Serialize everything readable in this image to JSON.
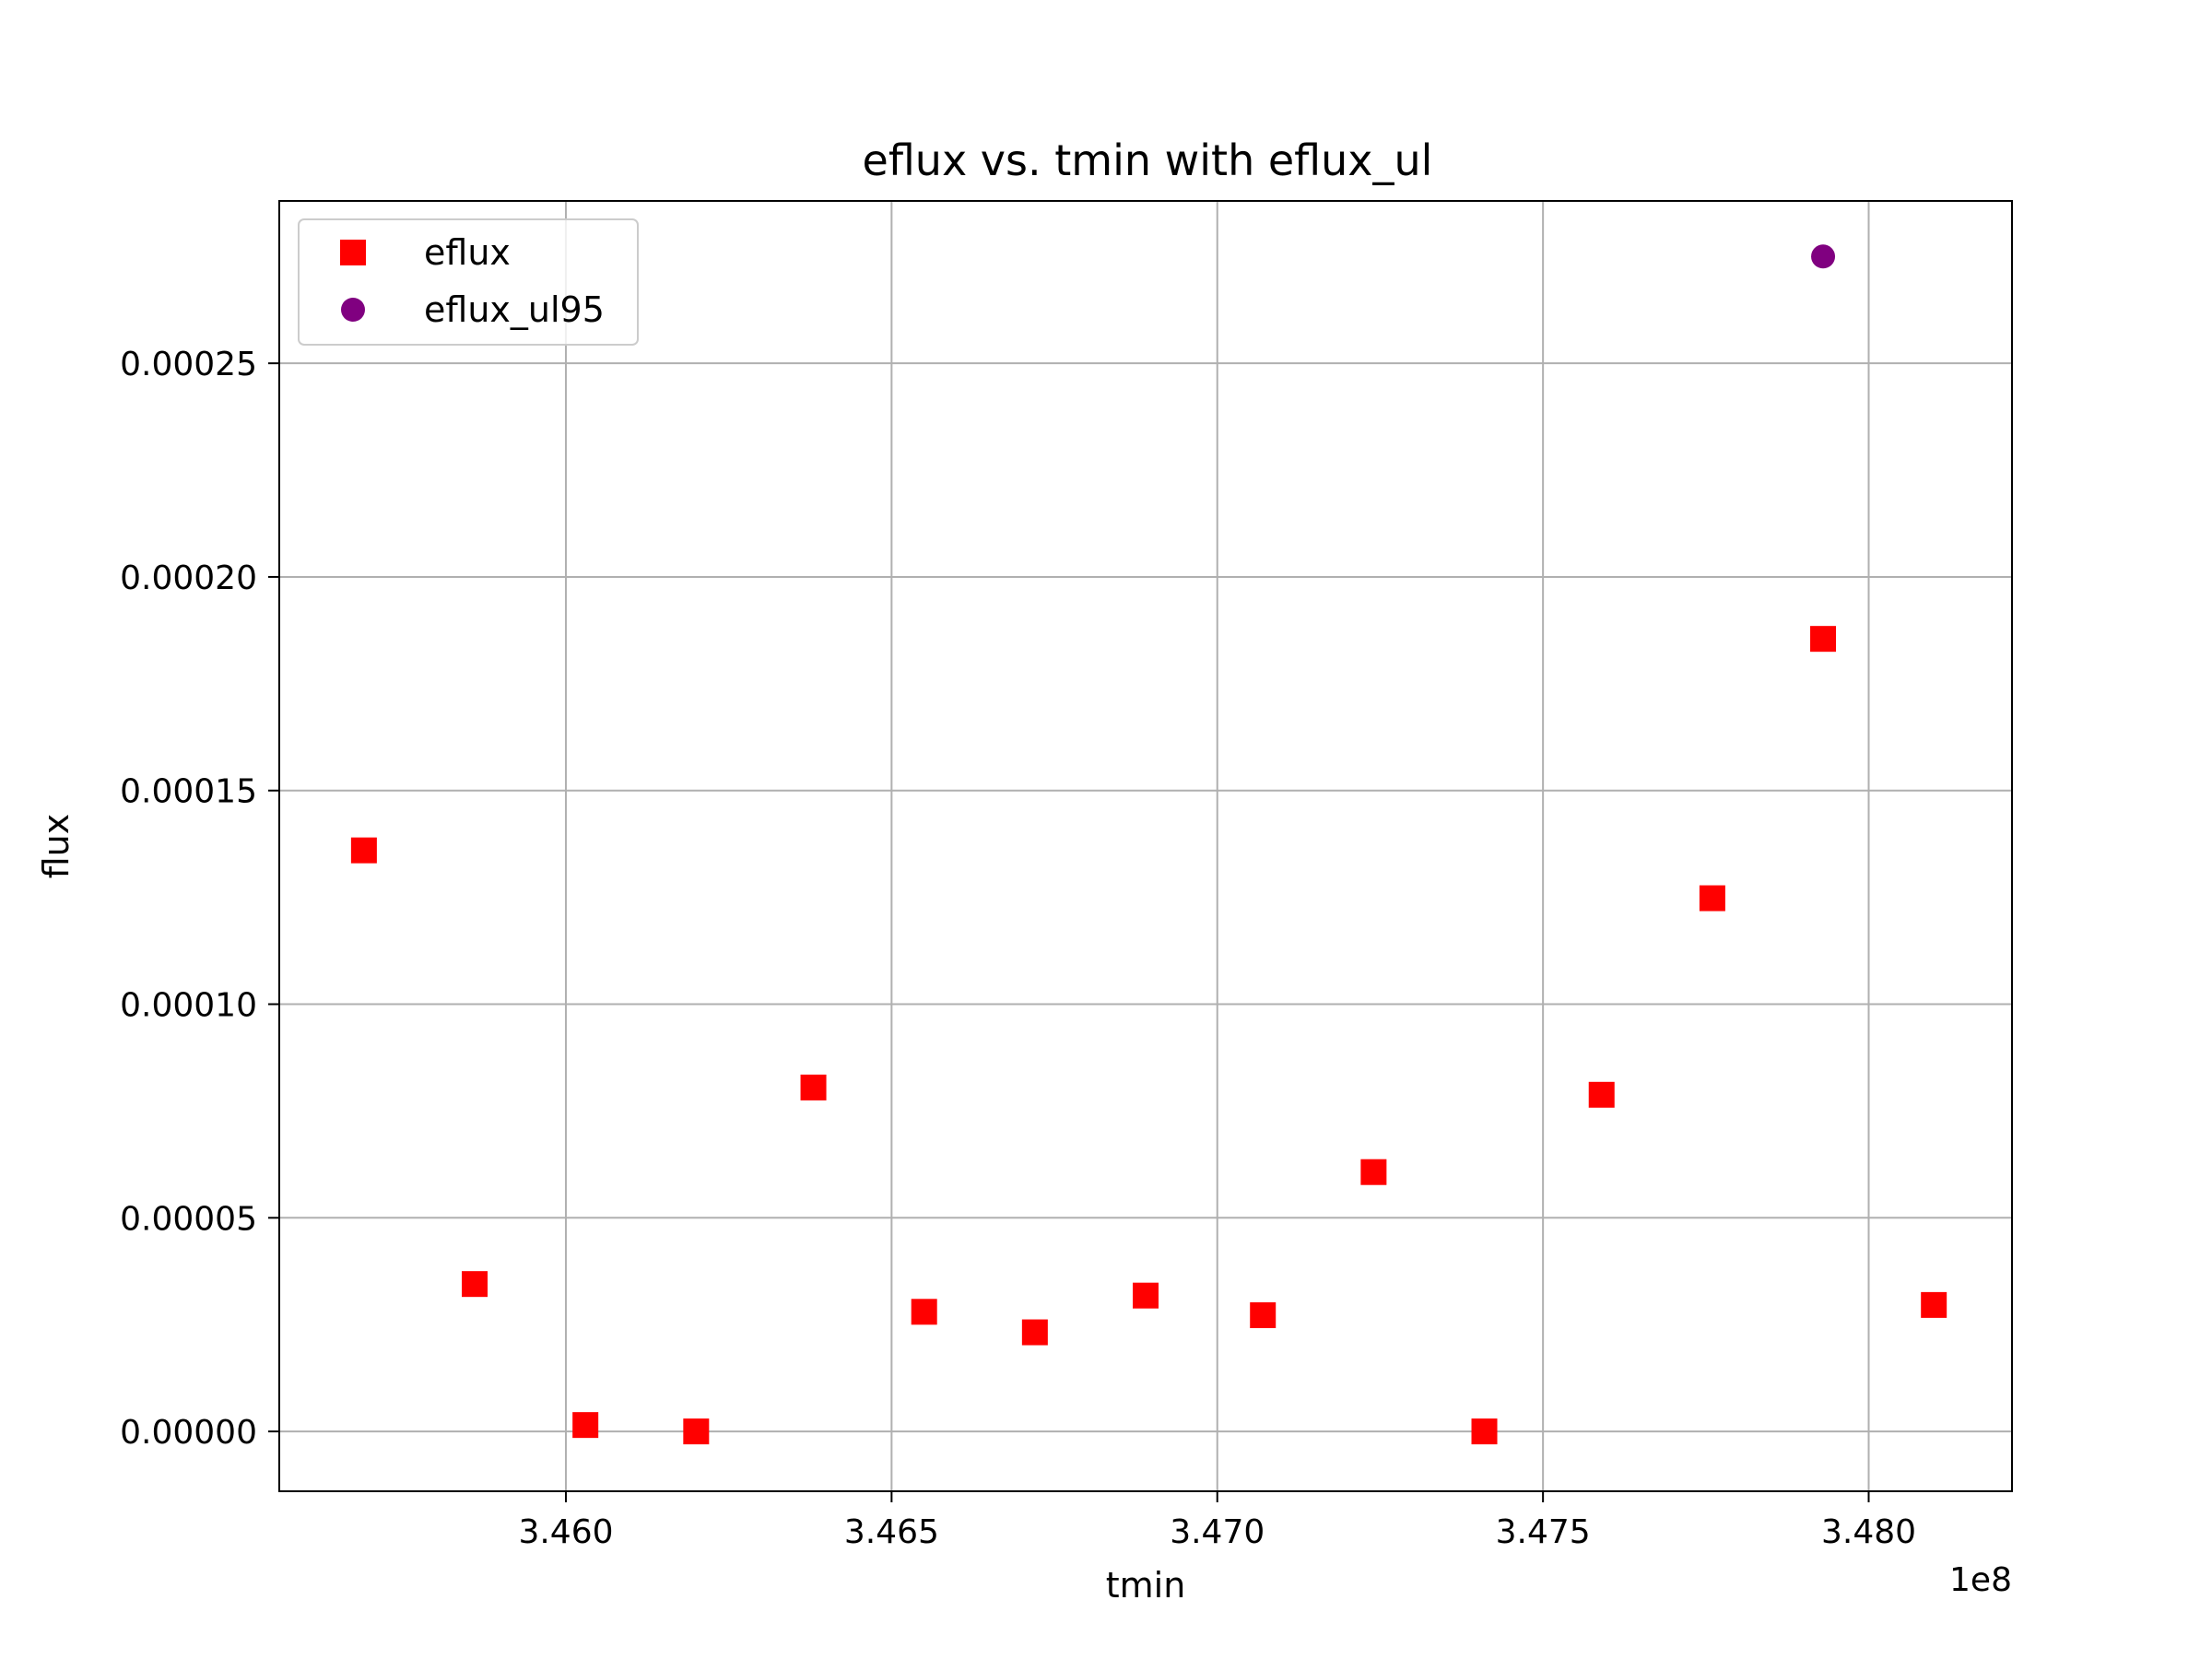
{
  "chart_data": {
    "type": "scatter",
    "title": "eflux vs. tmin with eflux_ul",
    "xlabel": "tmin",
    "ylabel": "flux",
    "x_offset_label": "1e8",
    "xlim": [
      3.4556,
      3.4822
    ],
    "ylim": [
      -1.4e-05,
      0.000288
    ],
    "x_ticks": [
      3.46,
      3.465,
      3.47,
      3.475,
      3.48
    ],
    "x_tick_labels": [
      "3.460",
      "3.465",
      "3.470",
      "3.475",
      "3.480"
    ],
    "y_ticks": [
      0.0,
      5e-05,
      0.0001,
      0.00015,
      0.0002,
      0.00025
    ],
    "y_tick_labels": [
      "0.00000",
      "0.00005",
      "0.00010",
      "0.00015",
      "0.00020",
      "0.00025"
    ],
    "grid": true,
    "legend_position": "top-left",
    "series": [
      {
        "name": "eflux",
        "marker": "square",
        "color": "#ff0000",
        "x": [
          3.4569,
          3.4586,
          3.4603,
          3.462,
          3.4638,
          3.4655,
          3.4672,
          3.4689,
          3.4707,
          3.4724,
          3.4741,
          3.4759,
          3.4776,
          3.4793,
          3.481
        ],
        "y": [
          0.000136,
          3.45e-05,
          1.5e-06,
          0.0,
          8.05e-05,
          2.8e-05,
          2.32e-05,
          3.18e-05,
          2.72e-05,
          6.07e-05,
          0.0,
          7.88e-05,
          0.0001248,
          0.0001855,
          2.96e-05
        ]
      },
      {
        "name": "eflux_ul95",
        "marker": "circle",
        "color": "#800080",
        "x": [
          3.4793
        ],
        "y": [
          0.000275
        ]
      }
    ]
  }
}
